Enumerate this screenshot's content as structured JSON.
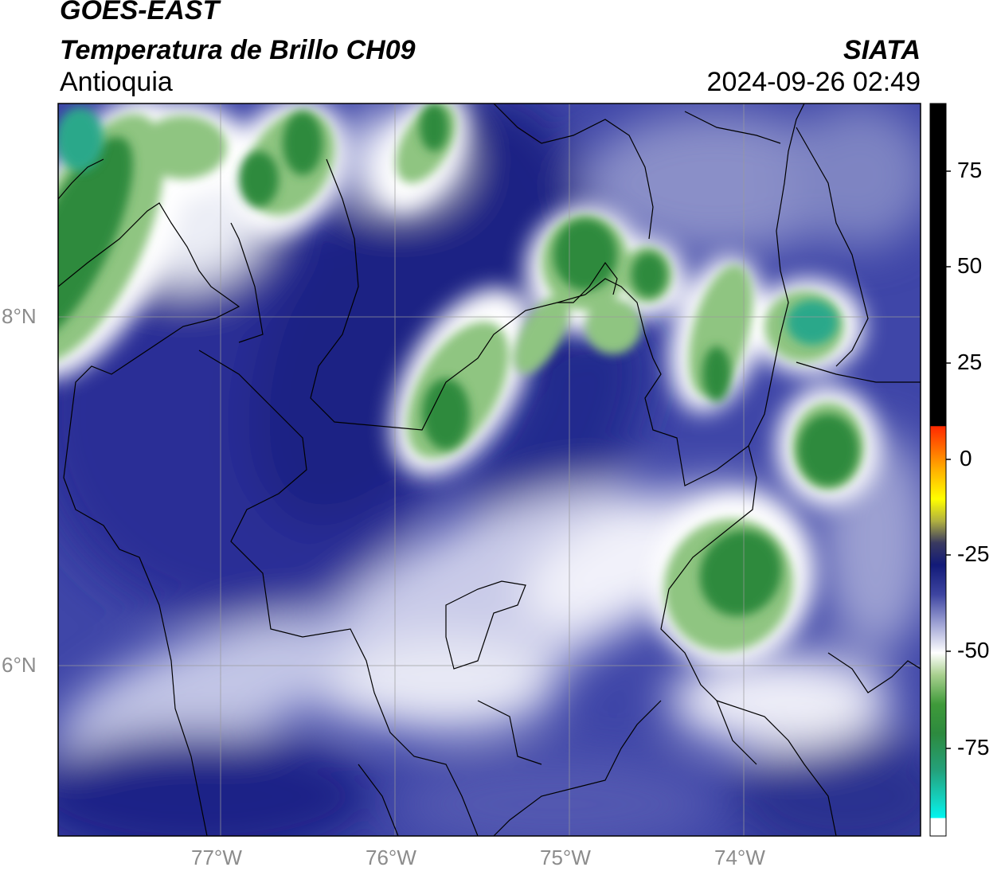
{
  "header": {
    "satellite": "GOES-EAST",
    "product": "Temperatura de Brillo CH09",
    "region": "Antioquia",
    "agency": "SIATA",
    "datetime": "2024-09-26 02:49"
  },
  "map": {
    "lon_ticks": [
      "77°W",
      "76°W",
      "75°W",
      "74°W"
    ],
    "lat_ticks": [
      "8°N",
      "6°N"
    ]
  },
  "colorbar": {
    "ticks": [
      "75",
      "50",
      "25",
      "0",
      "-25",
      "-50",
      "-75"
    ],
    "colors": {
      "warm_top": "#000000",
      "red": "#ff2a00",
      "orange": "#ff9a00",
      "yellow": "#ffff00",
      "navy": "#1a1f7a",
      "mid_blue": "#6d73b8",
      "white": "#ffffff",
      "green": "#2e8b3a",
      "teal": "#26c9a8",
      "cyan": "#00f0ee"
    }
  }
}
